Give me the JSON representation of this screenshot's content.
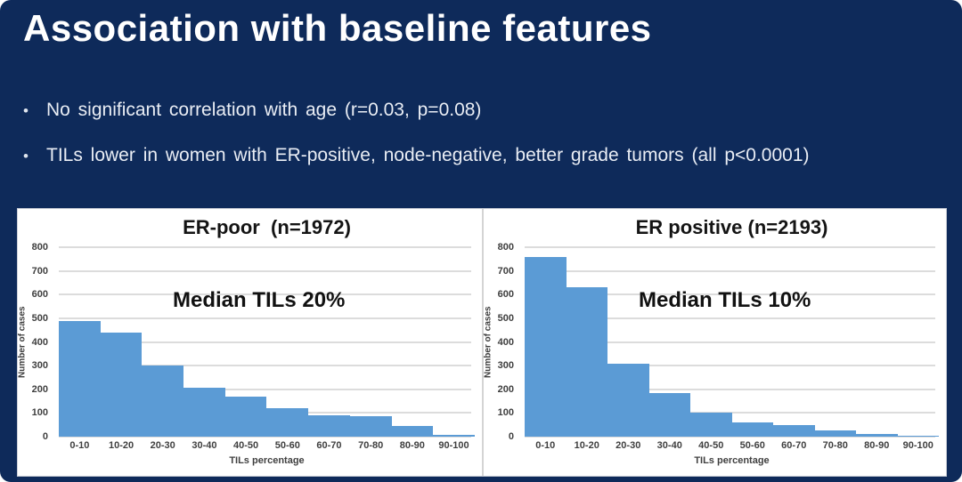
{
  "slide": {
    "title": "Association with baseline features",
    "bullet_glyph": "•",
    "bullets": [
      "No significant correlation with age (r=0.03, p=0.08)",
      "TILs lower in women with ER-positive, node-negative, better grade tumors (all p<0.0001)"
    ]
  },
  "colors": {
    "background": "#0e2a5a",
    "panel": "#ffffff",
    "bar": "#5b9bd5",
    "gridline": "#dcdcdc",
    "title_text": "#ffffff",
    "bullet_text": "#e9edf4",
    "chart_text": "#3f3f3f"
  },
  "chart_data": [
    {
      "type": "bar",
      "title": "ER-poor  (n=1972)",
      "annotation": "Median TILs 20%",
      "categories": [
        "0-10",
        "10-20",
        "20-30",
        "30-40",
        "40-50",
        "50-60",
        "60-70",
        "70-80",
        "80-90",
        "90-100"
      ],
      "values": [
        490,
        438,
        300,
        207,
        170,
        121,
        92,
        88,
        45,
        8
      ],
      "xlabel": "TILs percentage",
      "ylabel": "Number of cases",
      "ylim": [
        0,
        800
      ],
      "ytick_step": 100,
      "grid": true,
      "legend": "none"
    },
    {
      "type": "bar",
      "title": "ER positive (n=2193)",
      "annotation": "Median TILs 10%",
      "categories": [
        "0-10",
        "10-20",
        "20-30",
        "30-40",
        "40-50",
        "50-60",
        "60-70",
        "70-80",
        "80-90",
        "90-100"
      ],
      "values": [
        760,
        630,
        308,
        185,
        100,
        62,
        50,
        28,
        12,
        4
      ],
      "xlabel": "TILs percentage",
      "ylabel": "Number of cases",
      "ylim": [
        0,
        800
      ],
      "ytick_step": 100,
      "grid": true,
      "legend": "none"
    }
  ]
}
